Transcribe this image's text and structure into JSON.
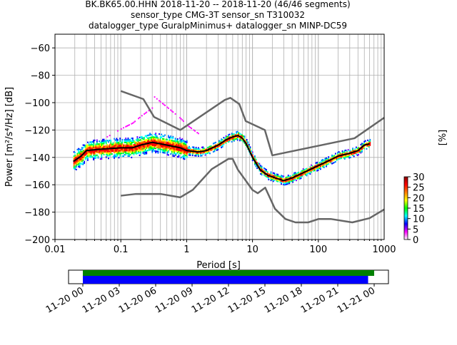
{
  "chart_data": {
    "type": "heatmap",
    "title_lines": [
      "BK.BK65.00.HHN   2018-11-20 -- 2018-11-20  (46/46 segments)",
      "sensor_type CMG-3T sensor_sn T310032",
      "datalogger_type GuralpMinimus+ datalogger_sn MINP-DC59"
    ],
    "xlabel": "Period [s]",
    "ylabel": "Power [m²/s⁴/Hz] [dB]",
    "xscale": "log",
    "xlim": [
      0.01,
      1000
    ],
    "ylim": [
      -200,
      -50
    ],
    "xticks": [
      {
        "v": 0.01,
        "label": "0.01"
      },
      {
        "v": 0.1,
        "label": "0.1"
      },
      {
        "v": 1,
        "label": "1"
      },
      {
        "v": 10,
        "label": "10"
      },
      {
        "v": 100,
        "label": "100"
      },
      {
        "v": 1000,
        "label": "1000"
      }
    ],
    "yticks": [
      {
        "v": -60,
        "label": "−60"
      },
      {
        "v": -80,
        "label": "−80"
      },
      {
        "v": -100,
        "label": "−100"
      },
      {
        "v": -120,
        "label": "−120"
      },
      {
        "v": -140,
        "label": "−140"
      },
      {
        "v": -160,
        "label": "−160"
      },
      {
        "v": -180,
        "label": "−180"
      },
      {
        "v": -200,
        "label": "−200"
      }
    ],
    "grid": true,
    "nhnm": {
      "name": "NHNM",
      "color": "#666666",
      "x": [
        0.1,
        0.22,
        0.32,
        0.8,
        3.8,
        4.6,
        6.3,
        7.9,
        15.4,
        20,
        354.8,
        1000
      ],
      "y": [
        -91.5,
        -97.4,
        -110.5,
        -120,
        -98,
        -96.5,
        -101,
        -113.5,
        -120,
        -138.5,
        -126,
        -111
      ]
    },
    "nlnm": {
      "name": "NLNM",
      "color": "#666666",
      "x": [
        0.1,
        0.17,
        0.4,
        0.8,
        1.24,
        2.4,
        4.3,
        5,
        6,
        10,
        12,
        15.6,
        21.9,
        31.6,
        45,
        70,
        101,
        154,
        328,
        600,
        1000
      ],
      "y": [
        -168,
        -166.7,
        -166.7,
        -169.2,
        -163.7,
        -148.6,
        -141.1,
        -141.1,
        -149,
        -163.8,
        -166.2,
        -162.1,
        -177.5,
        -185,
        -187.5,
        -187.5,
        -185,
        -185,
        -187.5,
        -184.4,
        -178
      ]
    },
    "mean": {
      "name": "mean",
      "color": "#000000",
      "x": [
        0.019,
        0.025,
        0.03,
        0.05,
        0.1,
        0.15,
        0.2,
        0.3,
        0.5,
        0.8,
        1,
        1.5,
        2,
        3,
        4,
        5,
        6,
        7,
        8,
        10,
        13,
        17,
        22,
        30,
        40,
        60,
        100,
        150,
        200,
        300,
        400,
        500,
        600
      ],
      "y": [
        -143,
        -139,
        -135,
        -134,
        -133,
        -133,
        -131,
        -129,
        -131,
        -133,
        -135,
        -136,
        -135,
        -131,
        -127,
        -125,
        -124,
        -126,
        -130,
        -140,
        -149,
        -153,
        -155,
        -157,
        -155,
        -151,
        -146,
        -142,
        -139,
        -137,
        -135,
        -131,
        -130
      ]
    },
    "colorbar": {
      "label": "[%]",
      "min": 0,
      "max": 30,
      "ticks": [
        {
          "v": 0,
          "label": "0"
        },
        {
          "v": 5,
          "label": "5"
        },
        {
          "v": 10,
          "label": "10"
        },
        {
          "v": 15,
          "label": "15"
        },
        {
          "v": 20,
          "label": "20"
        },
        {
          "v": 25,
          "label": "25"
        },
        {
          "v": 30,
          "label": "30"
        }
      ],
      "colors": [
        "#ffffff",
        "#ff00ff",
        "#0000ff",
        "#00ffff",
        "#00ff00",
        "#ffff00",
        "#ff7f00",
        "#ff0000",
        "#8b0000"
      ]
    },
    "coverage": {
      "start_hours": 0,
      "end_hours": 24,
      "green_bar_hours": [
        0,
        24
      ],
      "blue_bar_hours": [
        0,
        23.5
      ],
      "green_color": "#008000",
      "blue_color": "#0000ff",
      "xticks": [
        "11-20 00",
        "11-20 03",
        "11-20 06",
        "11-20 09",
        "11-20 12",
        "11-20 15",
        "11-20 18",
        "11-20 21",
        "11-21 00"
      ]
    }
  }
}
